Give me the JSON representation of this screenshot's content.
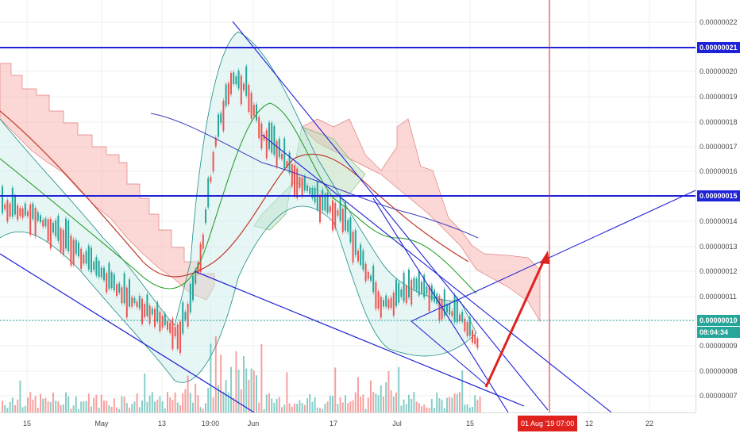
{
  "colors": {
    "blue_line": "#1f22d6",
    "red_arrow": "#e0221f",
    "kumo_red": "#f7b6b3",
    "kumo_green": "#b9dbb9",
    "candle_up": "#26a69a",
    "candle_down": "#ef5350",
    "bb_fill": "#c8ece8"
  },
  "price_axis": {
    "labels": [
      "0.00000022",
      "0.00000020",
      "0.00000019",
      "0.00000018",
      "0.00000017",
      "0.00000016",
      "0.00000014",
      "0.00000013",
      "0.00000012",
      "0.00000011",
      "0.00000009",
      "0.00000008",
      "0.00000007"
    ],
    "tag_upper": "0.00000021",
    "tag_lower": "0.00000015",
    "tag_current": "0.00000010",
    "countdown": "08:04:34"
  },
  "time_axis": {
    "labels": [
      "15",
      "May",
      "13",
      "19:00",
      "Jun",
      "17",
      "Jul",
      "15",
      "12",
      "22"
    ],
    "crosshair_tag": "01 Aug '19   07:00"
  }
}
